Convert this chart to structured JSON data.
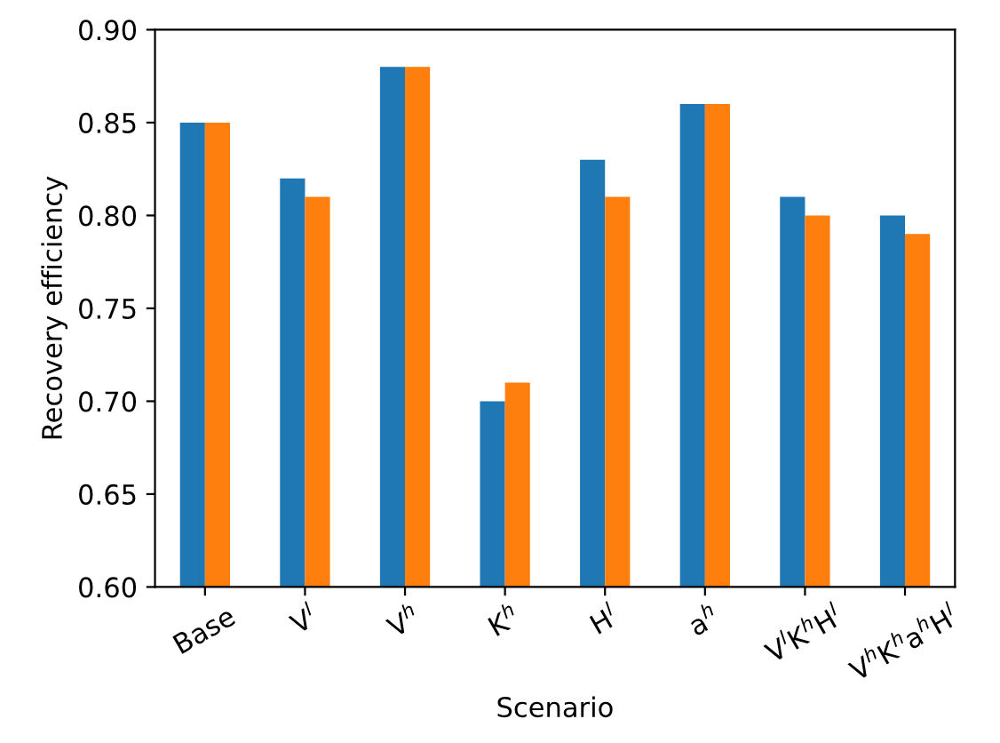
{
  "chart_data": {
    "type": "bar",
    "xlabel": "Scenario",
    "ylabel": "Recovery efficiency",
    "categories": [
      "Base",
      "V$^{l}$",
      "V$^{h}$",
      "K$^{h}$",
      "H$^{l}$",
      "a$^{h}$",
      "V$^{l}$K$^{h}$H$^{l}$",
      "V$^{h}$K$^{h}$a$^{h}$H$^{l}$"
    ],
    "series": [
      {
        "color": "#1f77b4",
        "values": [
          0.85,
          0.82,
          0.88,
          0.7,
          0.83,
          0.86,
          0.81,
          0.8
        ]
      },
      {
        "color": "#ff7f0e",
        "values": [
          0.85,
          0.81,
          0.88,
          0.71,
          0.81,
          0.86,
          0.8,
          0.79
        ]
      }
    ],
    "ylim": [
      0.6,
      0.9
    ],
    "yticks": [
      {
        "value": 0.6,
        "label": "0.60"
      },
      {
        "value": 0.65,
        "label": "0.65"
      },
      {
        "value": 0.7,
        "label": "0.70"
      },
      {
        "value": 0.75,
        "label": "0.75"
      },
      {
        "value": 0.8,
        "label": "0.80"
      },
      {
        "value": 0.85,
        "label": "0.85"
      },
      {
        "value": 0.9,
        "label": "0.90"
      }
    ]
  }
}
